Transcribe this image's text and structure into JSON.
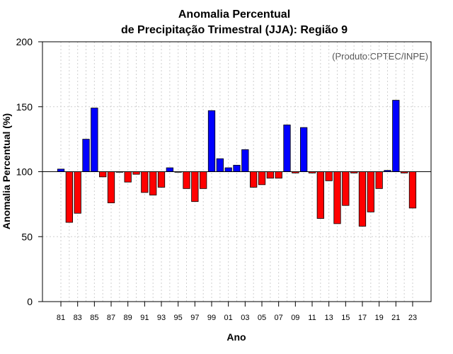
{
  "chart_data": {
    "type": "bar",
    "title": [
      "Anomalia Percentual",
      "de Precipitação Trimestral (JJA): Região 9"
    ],
    "xlabel": "Ano",
    "ylabel": "Anomalia Percentual (%)",
    "credit": "(Produto:CPTEC/INPE)",
    "baseline": 100,
    "ylim": [
      0,
      200
    ],
    "yticks": [
      0,
      50,
      100,
      150,
      200
    ],
    "grid": true,
    "colors": {
      "above": "#0000ff",
      "below": "#ff0000",
      "edge": "#000000"
    },
    "categories": [
      "81",
      "82",
      "83",
      "84",
      "85",
      "86",
      "87",
      "88",
      "89",
      "90",
      "91",
      "92",
      "93",
      "94",
      "95",
      "96",
      "97",
      "98",
      "99",
      "00",
      "01",
      "02",
      "03",
      "04",
      "05",
      "06",
      "07",
      "08",
      "09",
      "10",
      "11",
      "12",
      "13",
      "14",
      "15",
      "16",
      "17",
      "18",
      "19",
      "20",
      "21",
      "22",
      "23"
    ],
    "tick_labels": [
      "81",
      "83",
      "85",
      "87",
      "89",
      "91",
      "93",
      "95",
      "97",
      "99",
      "01",
      "03",
      "05",
      "07",
      "09",
      "11",
      "13",
      "15",
      "17",
      "19",
      "21",
      "23"
    ],
    "values": [
      102,
      61,
      68,
      125,
      149,
      96,
      76,
      100,
      92,
      98,
      84,
      82,
      88,
      103,
      100,
      87,
      77,
      87,
      147,
      110,
      103,
      105,
      117,
      88,
      90,
      95,
      95,
      136,
      99,
      134,
      99,
      64,
      93,
      60,
      74,
      99,
      58,
      69,
      87,
      101,
      155,
      99,
      72
    ]
  }
}
